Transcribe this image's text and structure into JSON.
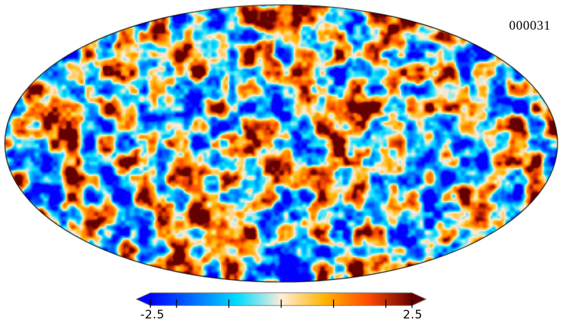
{
  "figure": {
    "frame_label": "000031",
    "background_color": "#ffffff"
  },
  "chart_data": {
    "type": "heatmap",
    "subtype": "full-sky-map",
    "projection": "mollweide",
    "description": "Full-sky simulated CMB-like Gaussian random field shown in Mollweide projection with a diverging Planck-style colormap; values are clipped at the colorbar limits.",
    "title": "",
    "annotations": [
      "000031"
    ],
    "map_outline_color": "#000000",
    "colorbar": {
      "orientation": "horizontal",
      "min": -2.5,
      "max": 2.5,
      "ticks": [
        -2.5,
        -2,
        -1,
        0,
        1,
        2,
        2.5
      ],
      "tick_labels": [
        "-2.5",
        "2.5"
      ],
      "extend_triangles": "both",
      "border_color": "#7a7a7a",
      "tick_color": "#000000",
      "colormap_name": "planck",
      "colormap_stops": [
        {
          "pos": 0.0,
          "color": "#0000ff"
        },
        {
          "pos": 0.167,
          "color": "#0070ff"
        },
        {
          "pos": 0.333,
          "color": "#00ddff"
        },
        {
          "pos": 0.5,
          "color": "#ffedd9"
        },
        {
          "pos": 0.667,
          "color": "#ffb400"
        },
        {
          "pos": 0.833,
          "color": "#ff4b00"
        },
        {
          "pos": 1.0,
          "color": "#640000"
        }
      ]
    },
    "field": {
      "distribution": "gaussian",
      "sigma": 1.5,
      "seed": 31,
      "octaves": [
        {
          "cell": 13.0,
          "amp": 1.0
        },
        {
          "cell": 6.5,
          "amp": 0.55
        },
        {
          "cell": 3.3,
          "amp": 0.22
        }
      ]
    }
  }
}
